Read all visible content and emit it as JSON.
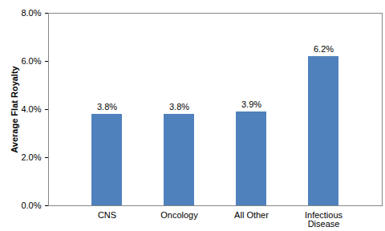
{
  "chart_data": {
    "type": "bar",
    "y_label": "Average Flat Royalty",
    "categories": [
      "CNS",
      "Oncology",
      "All Other",
      "Infectious Disease"
    ],
    "values": [
      3.8,
      3.8,
      3.9,
      6.2
    ],
    "value_labels": [
      "3.8%",
      "3.8%",
      "3.9%",
      "6.2%"
    ],
    "data_labels": true,
    "color": "#4f81bd",
    "ylim": [
      0,
      8
    ],
    "yticks": [
      {
        "value": 0,
        "label": "0.0%"
      },
      {
        "value": 2,
        "label": "2.0%"
      },
      {
        "value": 4,
        "label": "4.0%"
      },
      {
        "value": 6,
        "label": "6.0%"
      },
      {
        "value": 8,
        "label": "8.0%"
      }
    ],
    "grid": false
  }
}
